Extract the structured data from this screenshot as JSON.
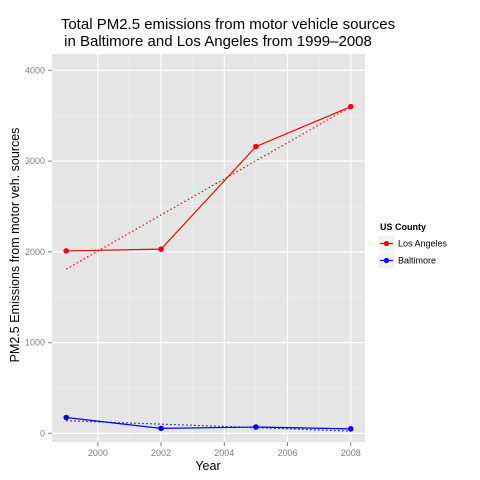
{
  "chart_data": {
    "type": "line",
    "title_lines": [
      "Total PM2.5 emissions from motor vehicle sources",
      "in Baltimore and Los Angeles from 1999–2008"
    ],
    "xlabel": "Year",
    "ylabel": "PM2.5 Emissions from motor veh. sources",
    "x": [
      1999,
      2002,
      2005,
      2008
    ],
    "xlim": [
      1998.55,
      2008.45
    ],
    "ylim": [
      -95,
      4180
    ],
    "x_ticks": [
      2000,
      2002,
      2004,
      2006,
      2008
    ],
    "y_ticks": [
      0,
      1000,
      2000,
      3000,
      4000
    ],
    "grid": true,
    "background": "#e5e5e5",
    "legend": {
      "title": "US County",
      "position": "right"
    },
    "series": [
      {
        "name": "Los Angeles",
        "color": "#ff0000",
        "values": [
          2010,
          2030,
          3160,
          3600
        ],
        "trend": {
          "style": "dotted",
          "start": [
            1999,
            1810
          ],
          "end": [
            2008,
            3600
          ]
        }
      },
      {
        "name": "Baltimore",
        "color": "#0000ff",
        "values": [
          175,
          55,
          70,
          50
        ],
        "trend": {
          "style": "dotted",
          "start": [
            1999,
            140
          ],
          "end": [
            2008,
            25
          ]
        }
      }
    ]
  }
}
